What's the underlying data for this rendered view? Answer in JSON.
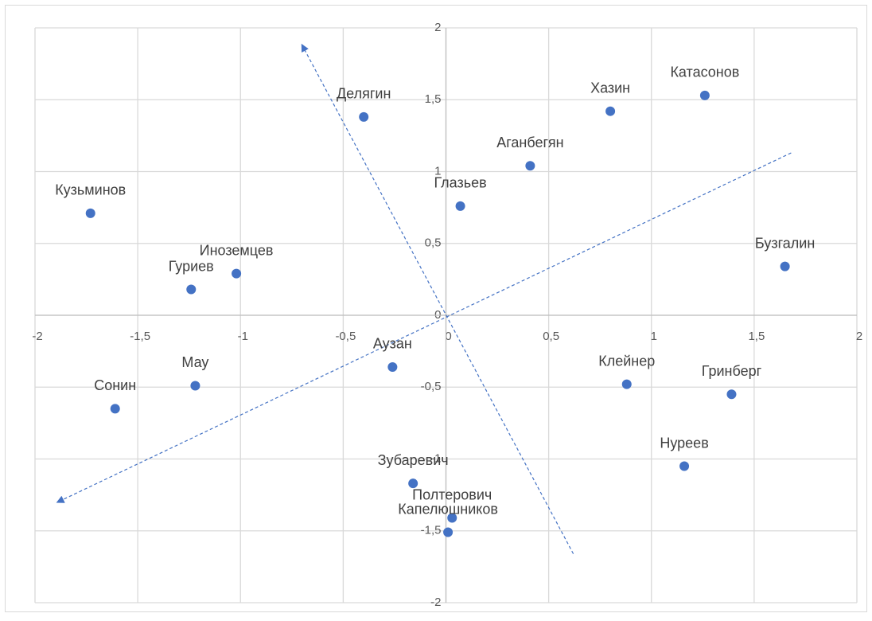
{
  "chart_data": {
    "type": "scatter",
    "color": "#4472c4",
    "grid": true,
    "xlim": [
      -2,
      2
    ],
    "ylim": [
      -2,
      2
    ],
    "xticks": [
      -2,
      {
        "value": -1.5,
        "label": "-1,5"
      },
      -1,
      {
        "value": -0.5,
        "label": "-0,5"
      },
      0,
      {
        "value": 0.5,
        "label": "0,5"
      },
      1,
      {
        "value": 1.5,
        "label": "1,5"
      },
      2
    ],
    "yticks": [
      -2,
      {
        "value": -1.5,
        "label": "-1,5"
      },
      -1,
      {
        "value": -0.5,
        "label": "-0,5"
      },
      0,
      {
        "value": 0.5,
        "label": "0,5"
      },
      1,
      {
        "value": 1.5,
        "label": "1,5"
      },
      2
    ],
    "points": [
      {
        "label": "Кузьминов",
        "x": -1.73,
        "y": 0.71
      },
      {
        "label": "Иноземцев",
        "x": -1.02,
        "y": 0.29
      },
      {
        "label": "Гуриев",
        "x": -1.24,
        "y": 0.18
      },
      {
        "label": "Делягин",
        "x": -0.4,
        "y": 1.38
      },
      {
        "label": "Глазьев",
        "x": 0.07,
        "y": 0.76
      },
      {
        "label": "Аганбегян",
        "x": 0.41,
        "y": 1.04
      },
      {
        "label": "Хазин",
        "x": 0.8,
        "y": 1.42
      },
      {
        "label": "Катасонов",
        "x": 1.26,
        "y": 1.53
      },
      {
        "label": "Бузгалин",
        "x": 1.65,
        "y": 0.34
      },
      {
        "label": "Мау",
        "x": -1.22,
        "y": -0.49
      },
      {
        "label": "Сонин",
        "x": -1.61,
        "y": -0.65
      },
      {
        "label": "Аузан",
        "x": -0.26,
        "y": -0.36
      },
      {
        "label": "Клейнер",
        "x": 0.88,
        "y": -0.48
      },
      {
        "label": "Гринберг",
        "x": 1.39,
        "y": -0.55
      },
      {
        "label": "Нуреев",
        "x": 1.16,
        "y": -1.05
      },
      {
        "label": "Зубаревич",
        "x": -0.16,
        "y": -1.17
      },
      {
        "label": "Полтерович",
        "x": 0.03,
        "y": -1.41
      },
      {
        "label": "Капелюшников",
        "x": 0.01,
        "y": -1.51
      }
    ],
    "lines": [
      {
        "x": [
          0.62,
          -0.7
        ],
        "y": [
          -1.66,
          1.88
        ],
        "arrow": "end"
      },
      {
        "x": [
          1.68,
          -1.89
        ],
        "y": [
          1.13,
          -1.3
        ],
        "arrow": "end"
      }
    ]
  }
}
